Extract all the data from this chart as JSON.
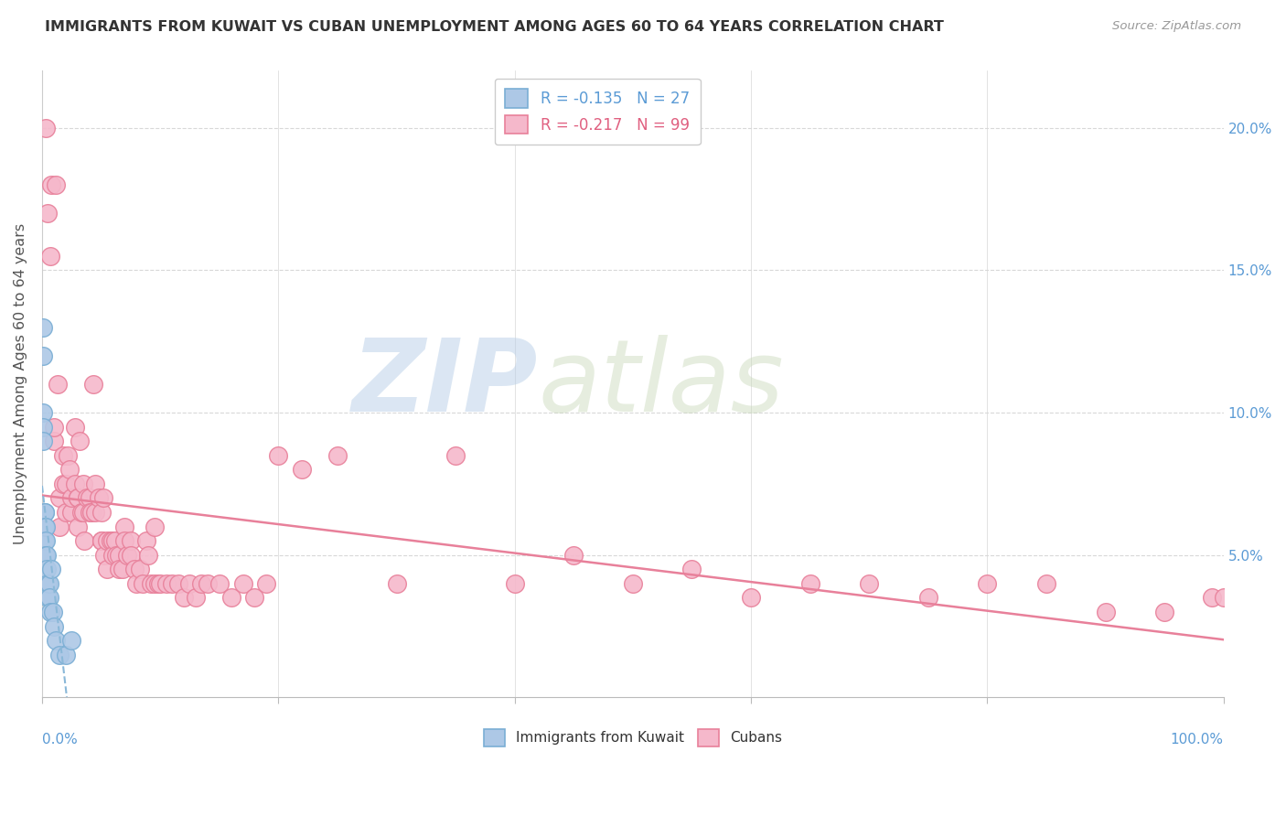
{
  "title": "IMMIGRANTS FROM KUWAIT VS CUBAN UNEMPLOYMENT AMONG AGES 60 TO 64 YEARS CORRELATION CHART",
  "source": "Source: ZipAtlas.com",
  "ylabel": "Unemployment Among Ages 60 to 64 years",
  "ylabel_right_ticks": [
    "20.0%",
    "15.0%",
    "10.0%",
    "5.0%"
  ],
  "ylabel_right_vals": [
    0.2,
    0.15,
    0.1,
    0.05
  ],
  "legend_entry1": "R = -0.135   N = 27",
  "legend_entry2": "R = -0.217   N = 99",
  "watermark_zip": "ZIP",
  "watermark_atlas": "atlas",
  "kuwait_color": "#adc8e6",
  "cuban_color": "#f5b8cb",
  "kuwait_edge": "#7aaed4",
  "cuban_edge": "#e8809a",
  "kuwait_trendline_color": "#8ab8d8",
  "cuban_trendline_color": "#e8809a",
  "xlim": [
    0,
    1.0
  ],
  "ylim": [
    0,
    0.22
  ],
  "background_color": "#ffffff",
  "grid_color": "#d8d8d8",
  "kuwait_x": [
    0.001,
    0.001,
    0.001,
    0.001,
    0.001,
    0.002,
    0.002,
    0.002,
    0.002,
    0.002,
    0.003,
    0.003,
    0.003,
    0.004,
    0.004,
    0.005,
    0.005,
    0.006,
    0.006,
    0.007,
    0.008,
    0.009,
    0.01,
    0.012,
    0.015,
    0.02,
    0.025
  ],
  "kuwait_y": [
    0.13,
    0.12,
    0.1,
    0.095,
    0.09,
    0.065,
    0.065,
    0.06,
    0.055,
    0.05,
    0.06,
    0.055,
    0.05,
    0.05,
    0.045,
    0.04,
    0.035,
    0.04,
    0.035,
    0.03,
    0.045,
    0.03,
    0.025,
    0.02,
    0.015,
    0.015,
    0.02
  ],
  "cuban_x": [
    0.003,
    0.005,
    0.007,
    0.008,
    0.01,
    0.01,
    0.012,
    0.013,
    0.015,
    0.015,
    0.018,
    0.018,
    0.02,
    0.02,
    0.022,
    0.023,
    0.025,
    0.025,
    0.028,
    0.028,
    0.03,
    0.03,
    0.03,
    0.032,
    0.033,
    0.035,
    0.035,
    0.036,
    0.038,
    0.04,
    0.04,
    0.042,
    0.043,
    0.045,
    0.045,
    0.048,
    0.05,
    0.05,
    0.05,
    0.052,
    0.053,
    0.055,
    0.055,
    0.058,
    0.06,
    0.06,
    0.062,
    0.063,
    0.065,
    0.065,
    0.068,
    0.07,
    0.07,
    0.072,
    0.075,
    0.075,
    0.078,
    0.08,
    0.083,
    0.085,
    0.088,
    0.09,
    0.092,
    0.095,
    0.095,
    0.098,
    0.1,
    0.105,
    0.11,
    0.115,
    0.12,
    0.125,
    0.13,
    0.135,
    0.14,
    0.15,
    0.16,
    0.17,
    0.18,
    0.19,
    0.2,
    0.22,
    0.25,
    0.3,
    0.35,
    0.4,
    0.45,
    0.5,
    0.55,
    0.6,
    0.65,
    0.7,
    0.75,
    0.8,
    0.85,
    0.9,
    0.95,
    0.99,
    1.0
  ],
  "cuban_y": [
    0.2,
    0.17,
    0.155,
    0.18,
    0.09,
    0.095,
    0.18,
    0.11,
    0.07,
    0.06,
    0.085,
    0.075,
    0.075,
    0.065,
    0.085,
    0.08,
    0.065,
    0.07,
    0.095,
    0.075,
    0.07,
    0.07,
    0.06,
    0.09,
    0.065,
    0.075,
    0.065,
    0.055,
    0.07,
    0.07,
    0.065,
    0.065,
    0.11,
    0.075,
    0.065,
    0.07,
    0.055,
    0.065,
    0.055,
    0.07,
    0.05,
    0.055,
    0.045,
    0.055,
    0.055,
    0.05,
    0.055,
    0.05,
    0.05,
    0.045,
    0.045,
    0.06,
    0.055,
    0.05,
    0.055,
    0.05,
    0.045,
    0.04,
    0.045,
    0.04,
    0.055,
    0.05,
    0.04,
    0.06,
    0.04,
    0.04,
    0.04,
    0.04,
    0.04,
    0.04,
    0.035,
    0.04,
    0.035,
    0.04,
    0.04,
    0.04,
    0.035,
    0.04,
    0.035,
    0.04,
    0.085,
    0.08,
    0.085,
    0.04,
    0.085,
    0.04,
    0.05,
    0.04,
    0.045,
    0.035,
    0.04,
    0.04,
    0.035,
    0.04,
    0.04,
    0.03,
    0.03,
    0.035,
    0.035
  ]
}
